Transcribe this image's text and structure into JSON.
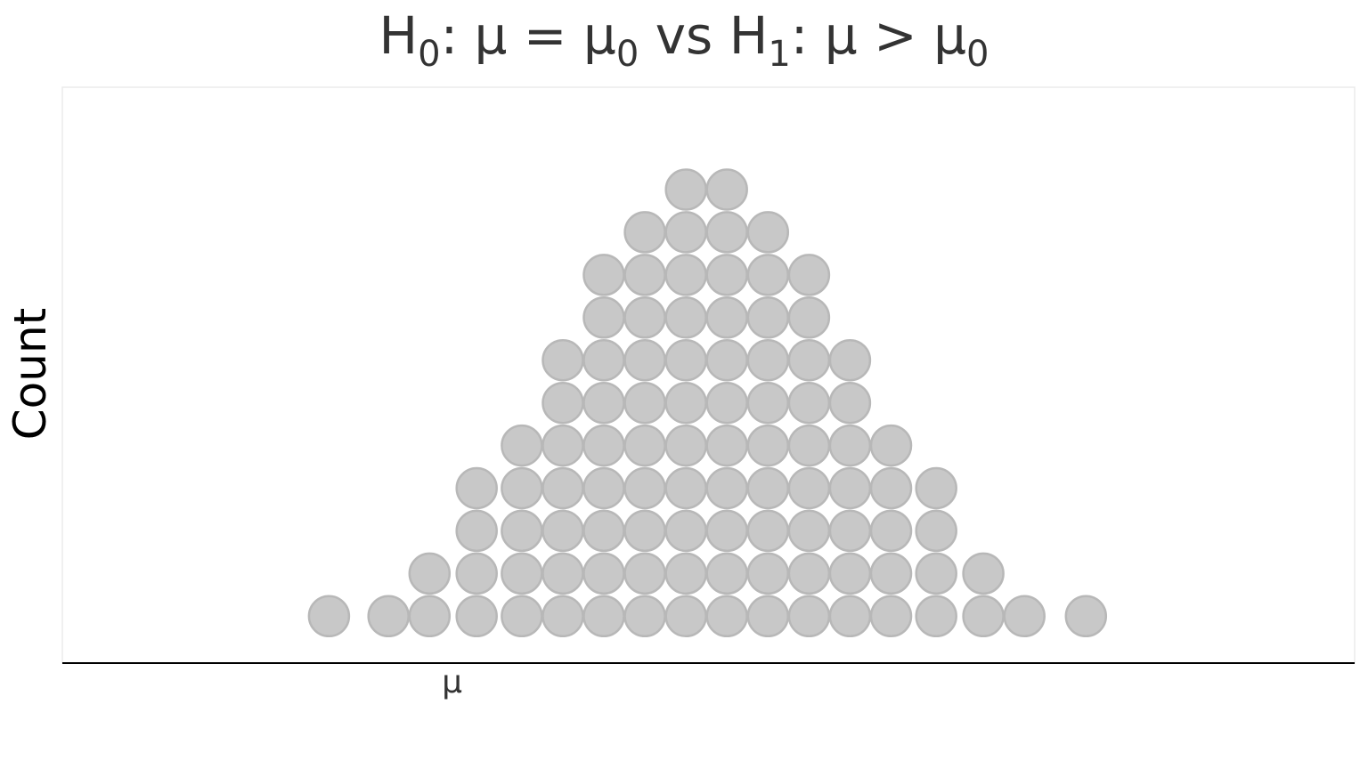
{
  "chart_data": {
    "type": "dotplot",
    "title": {
      "h0_symbol": "H",
      "h0_sub": "0",
      "null_hypothesis": ": μ = μ",
      "null_sub": "0",
      "separator": " vs ",
      "h1_symbol": "H",
      "h1_sub": "1",
      "alt_hypothesis": ": μ > μ",
      "alt_sub": "0"
    },
    "ylabel": "Count",
    "x_tick_label": "μ",
    "x_ticks": [
      {
        "x": 9.5,
        "label": "μ"
      }
    ],
    "xlim": [
      0,
      31.5
    ],
    "ylim": [
      0,
      13.5
    ],
    "grid": false,
    "point_color": "#c8c8c8",
    "point_stroke": "#b8b8b8",
    "columns": [
      {
        "x": 6.5,
        "count": 1
      },
      {
        "x": 7.95,
        "count": 1
      },
      {
        "x": 8.95,
        "count": 2
      },
      {
        "x": 10.1,
        "count": 4
      },
      {
        "x": 11.2,
        "count": 5
      },
      {
        "x": 12.2,
        "count": 7
      },
      {
        "x": 13.2,
        "count": 9
      },
      {
        "x": 14.2,
        "count": 10
      },
      {
        "x": 15.2,
        "count": 11
      },
      {
        "x": 16.2,
        "count": 11
      },
      {
        "x": 17.2,
        "count": 10
      },
      {
        "x": 18.2,
        "count": 9
      },
      {
        "x": 19.2,
        "count": 7
      },
      {
        "x": 20.2,
        "count": 5
      },
      {
        "x": 21.3,
        "count": 4
      },
      {
        "x": 22.45,
        "count": 2
      },
      {
        "x": 23.45,
        "count": 1
      },
      {
        "x": 24.95,
        "count": 1
      }
    ]
  }
}
